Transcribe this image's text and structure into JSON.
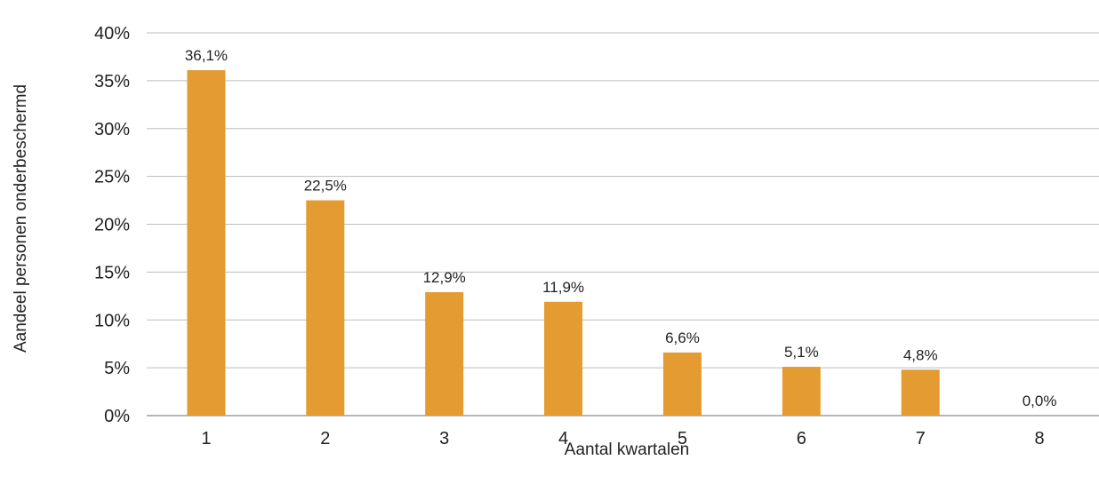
{
  "chart_data": {
    "type": "bar",
    "categories": [
      "1",
      "2",
      "3",
      "4",
      "5",
      "6",
      "7",
      "8"
    ],
    "values": [
      36.1,
      22.5,
      12.9,
      11.9,
      6.6,
      5.1,
      4.8,
      0.0
    ],
    "data_labels": [
      "36,1%",
      "22,5%",
      "12,9%",
      "11,9%",
      "6,6%",
      "5,1%",
      "4,8%",
      "0,0%"
    ],
    "y_ticks": [
      0,
      5,
      10,
      15,
      20,
      25,
      30,
      35,
      40
    ],
    "y_tick_labels": [
      "0%",
      "5%",
      "10%",
      "15%",
      "20%",
      "25%",
      "30%",
      "35%",
      "40%"
    ],
    "ylim": [
      0,
      40
    ],
    "xlabel": "Aantal kwartalen",
    "ylabel": "Aandeel personen onderbeschermd",
    "grid": true,
    "legend": "none",
    "bar_color": "#E39B32"
  }
}
